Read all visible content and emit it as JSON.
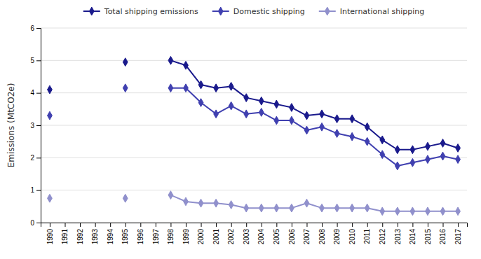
{
  "chart_data": {
    "type": "line",
    "x": [
      1990,
      1991,
      1992,
      1993,
      1994,
      1995,
      1996,
      1997,
      1998,
      1999,
      2000,
      2001,
      2002,
      2003,
      2004,
      2005,
      2006,
      2007,
      2008,
      2009,
      2010,
      2011,
      2012,
      2013,
      2014,
      2015,
      2016,
      2017
    ],
    "series": [
      {
        "name": "Total shipping emissions",
        "color": "#1a1a8c",
        "values": [
          4.1,
          null,
          null,
          null,
          null,
          4.95,
          null,
          null,
          5.0,
          4.85,
          4.25,
          4.15,
          4.2,
          3.85,
          3.75,
          3.65,
          3.55,
          3.3,
          3.35,
          3.2,
          3.2,
          2.95,
          2.55,
          2.25,
          2.25,
          2.35,
          2.45,
          2.3
        ]
      },
      {
        "name": "Domestic shipping",
        "color": "#4040b0",
        "values": [
          3.3,
          null,
          null,
          null,
          null,
          4.15,
          null,
          null,
          4.15,
          4.15,
          3.7,
          3.35,
          3.6,
          3.35,
          3.4,
          3.15,
          3.15,
          2.85,
          2.95,
          2.75,
          2.65,
          2.5,
          2.1,
          1.75,
          1.85,
          1.95,
          2.05,
          1.95
        ]
      },
      {
        "name": "International shipping",
        "color": "#9090cc",
        "values": [
          0.75,
          null,
          null,
          null,
          null,
          0.75,
          null,
          null,
          0.85,
          0.65,
          0.6,
          0.6,
          0.55,
          0.45,
          0.45,
          0.45,
          0.45,
          0.6,
          0.45,
          0.45,
          0.45,
          0.45,
          0.35,
          0.35,
          0.35,
          0.35,
          0.35,
          0.35
        ]
      }
    ],
    "marker": "diamond",
    "ylabel": "Emissions (MtCO2e)",
    "xlim": [
      1989.4,
      2017.6
    ],
    "xticks": [
      1990,
      1991,
      1992,
      1993,
      1994,
      1995,
      1996,
      1997,
      1998,
      1999,
      2000,
      2001,
      2002,
      2003,
      2004,
      2005,
      2006,
      2007,
      2008,
      2009,
      2010,
      2011,
      2012,
      2013,
      2014,
      2015,
      2016,
      2017
    ],
    "ylim": [
      0,
      6
    ],
    "yticks": [
      0,
      1,
      2,
      3,
      4,
      5,
      6
    ],
    "grid": true,
    "legend": "top"
  }
}
